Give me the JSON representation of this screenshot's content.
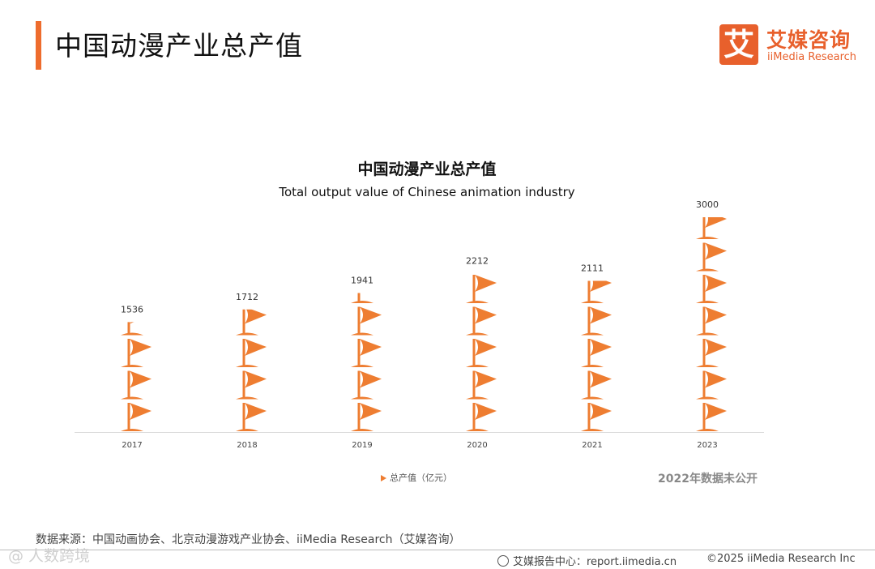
{
  "header": {
    "title": "中国动漫产业总产值"
  },
  "logo": {
    "mark": "艾",
    "name_cn": "艾媒咨询",
    "name_en": "iiMedia Research"
  },
  "chart_data": {
    "type": "bar",
    "title": "中国动漫产业总产值",
    "subtitle": "Total output value of Chinese animation industry",
    "categories": [
      "2017",
      "2018",
      "2019",
      "2020",
      "2021",
      "2023"
    ],
    "series": [
      {
        "name": "总产值（亿元）",
        "values": [
          1536,
          1712,
          1941,
          2212,
          2111,
          3000
        ]
      }
    ],
    "unit": "亿元",
    "ylim": [
      0,
      3000
    ],
    "grid": false,
    "legend": "bottom",
    "colors": {
      "bar": "#ee7d31"
    }
  },
  "legend": {
    "label": "总产值（亿元）"
  },
  "note": "2022年数据未公开",
  "source": "数据来源：中国动画协会、北京动漫游戏产业协会、iiMedia Research（艾媒咨询）",
  "footer": {
    "center": "艾媒报告中心：report.iimedia.cn",
    "copyright": "©2025  iiMedia Research  Inc"
  },
  "watermark": "@ 人数跨境"
}
